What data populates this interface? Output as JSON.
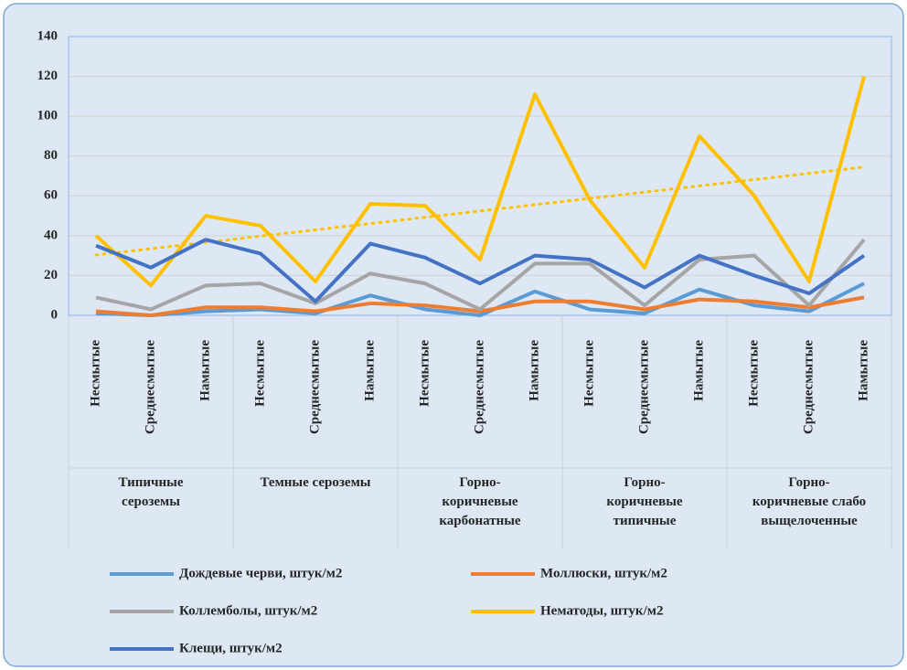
{
  "chart_data": {
    "type": "line",
    "categories": [
      "Несмытые",
      "Среднесмытые",
      "Намытые",
      "Несмытые",
      "Среднесмытые",
      "Намытые",
      "Несмытые",
      "Среднесмытые",
      "Намытые",
      "Несмытые",
      "Среднесмытые",
      "Намытые",
      "Несмытые",
      "Среднесмытые",
      "Намытые"
    ],
    "groups": [
      "Типичные\nсероземы",
      "Темные сероземы",
      "Горно-\nкоричневые\nкарбонатные",
      "Горно-\nкоричневые\nтипичные",
      "Горно-\nкоричневые слабо\nвыщелоченные"
    ],
    "series": [
      {
        "name": "Дождевые черви, штук/м2",
        "color": "#5b9bd5",
        "values": [
          1,
          0,
          2,
          3,
          1,
          10,
          3,
          0,
          12,
          3,
          1,
          13,
          5,
          2,
          16
        ]
      },
      {
        "name": "Моллюски, штук/м2",
        "color": "#ed7d31",
        "values": [
          2,
          0,
          4,
          4,
          2,
          6,
          5,
          2,
          7,
          7,
          3,
          8,
          7,
          4,
          9
        ]
      },
      {
        "name": "Коллемболы, штук/м2",
        "color": "#a5a5a5",
        "values": [
          9,
          3,
          15,
          16,
          6,
          21,
          16,
          3,
          26,
          26,
          5,
          28,
          30,
          5,
          38
        ]
      },
      {
        "name": "Нематоды, штук/м2",
        "color": "#ffc000",
        "values": [
          40,
          15,
          50,
          45,
          17,
          56,
          55,
          28,
          111,
          58,
          24,
          90,
          60,
          17,
          120
        ],
        "trendline": true
      },
      {
        "name": "Клещи, штук/м2",
        "color": "#4472c4",
        "values": [
          35,
          24,
          38,
          31,
          7,
          36,
          29,
          16,
          30,
          28,
          14,
          30,
          20,
          11,
          30
        ]
      }
    ],
    "ylim": [
      0,
      140
    ],
    "yticks": [
      0,
      20,
      40,
      60,
      80,
      100,
      120,
      140
    ],
    "grid": true
  }
}
